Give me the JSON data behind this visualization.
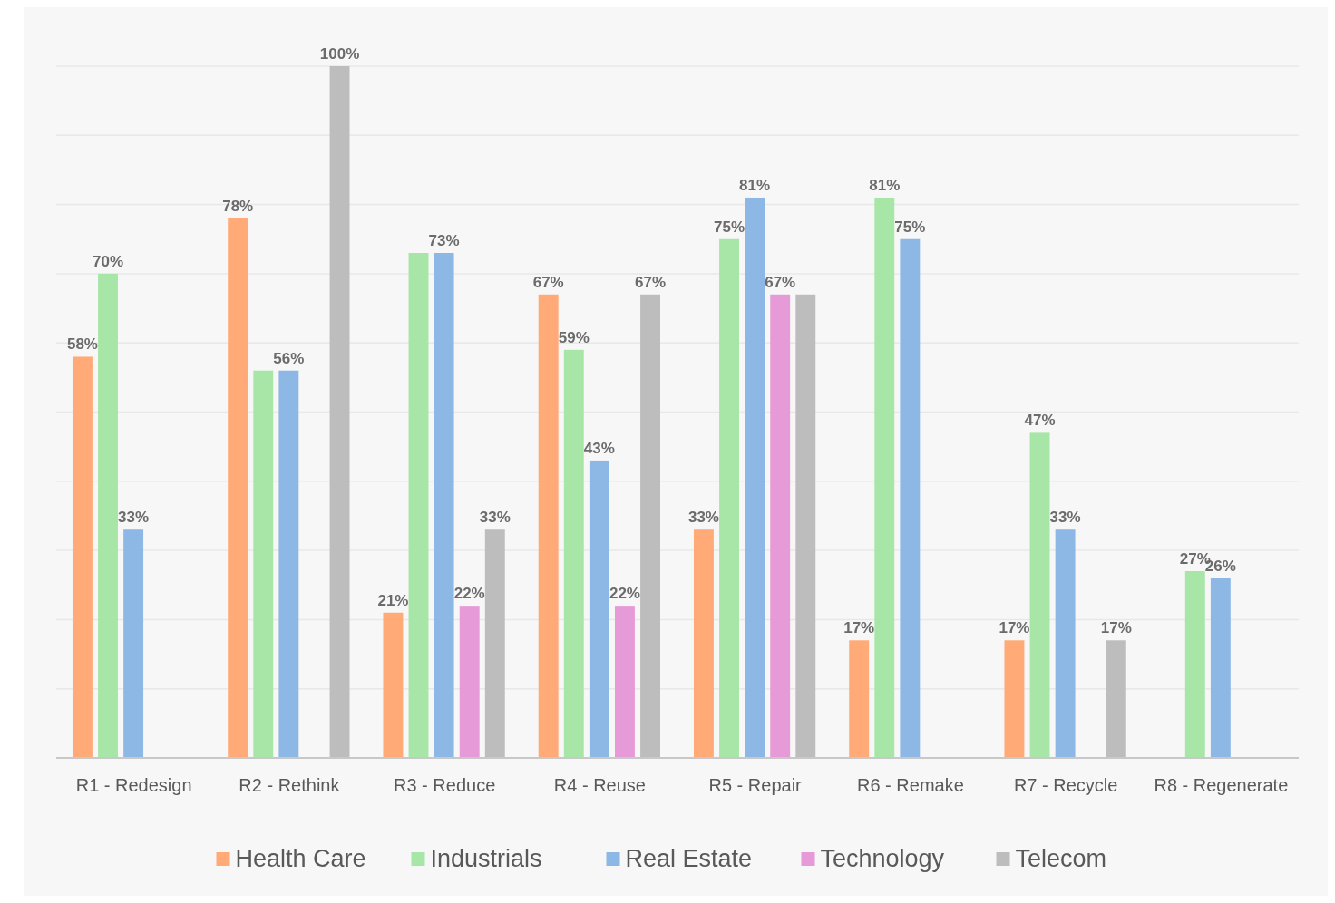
{
  "chart_data": {
    "type": "bar",
    "categories": [
      "R1 - Redesign",
      "R2 - Rethink",
      "R3 - Reduce",
      "R4 - Reuse",
      "R5 - Repair",
      "R6 - Remake",
      "R7 - Recycle",
      "R8 - Regenerate"
    ],
    "series": [
      {
        "name": "Health Care",
        "color": "#ffaa77",
        "values": [
          58,
          78,
          21,
          67,
          33,
          17,
          17,
          null
        ],
        "value_labels": [
          "58%",
          "78%",
          "21%",
          "67%",
          "33%",
          "17%",
          "17%",
          null
        ]
      },
      {
        "name": "Industrials",
        "color": "#a8e6a8",
        "values": [
          70,
          56,
          73,
          59,
          75,
          81,
          47,
          27
        ],
        "value_labels": [
          "70%",
          null,
          null,
          "59%",
          "75%",
          "81%",
          "47%",
          "27%"
        ]
      },
      {
        "name": "Real Estate",
        "color": "#8db8e6",
        "values": [
          33,
          56,
          73,
          43,
          81,
          75,
          33,
          26
        ],
        "value_labels": [
          "33%",
          "56%",
          "73%",
          "43%",
          "81%",
          "75%",
          "33%",
          "26%"
        ]
      },
      {
        "name": "Technology",
        "color": "#e69ad8",
        "values": [
          null,
          null,
          22,
          22,
          67,
          null,
          null,
          null
        ],
        "value_labels": [
          null,
          null,
          "22%",
          "22%",
          "67%",
          null,
          null,
          null
        ]
      },
      {
        "name": "Telecom",
        "color": "#bdbdbd",
        "values": [
          null,
          100,
          33,
          67,
          67,
          null,
          17,
          null
        ],
        "value_labels": [
          null,
          "100%",
          "33%",
          "67%",
          null,
          null,
          "17%",
          null
        ]
      }
    ],
    "ylim": [
      0,
      100
    ],
    "yticks": [
      {
        "value": 0,
        "label": null
      },
      {
        "value": 10,
        "label": null
      },
      {
        "value": 20,
        "label": null
      },
      {
        "value": 30,
        "label": null
      },
      {
        "value": 40,
        "label": null
      },
      {
        "value": 50,
        "label": null
      },
      {
        "value": 60,
        "label": null
      },
      {
        "value": 70,
        "label": null
      },
      {
        "value": 80,
        "label": null
      },
      {
        "value": 90,
        "label": null
      },
      {
        "value": 100,
        "label": null
      }
    ],
    "grid": "y",
    "legend": "bottom",
    "tick_labels": "x"
  }
}
